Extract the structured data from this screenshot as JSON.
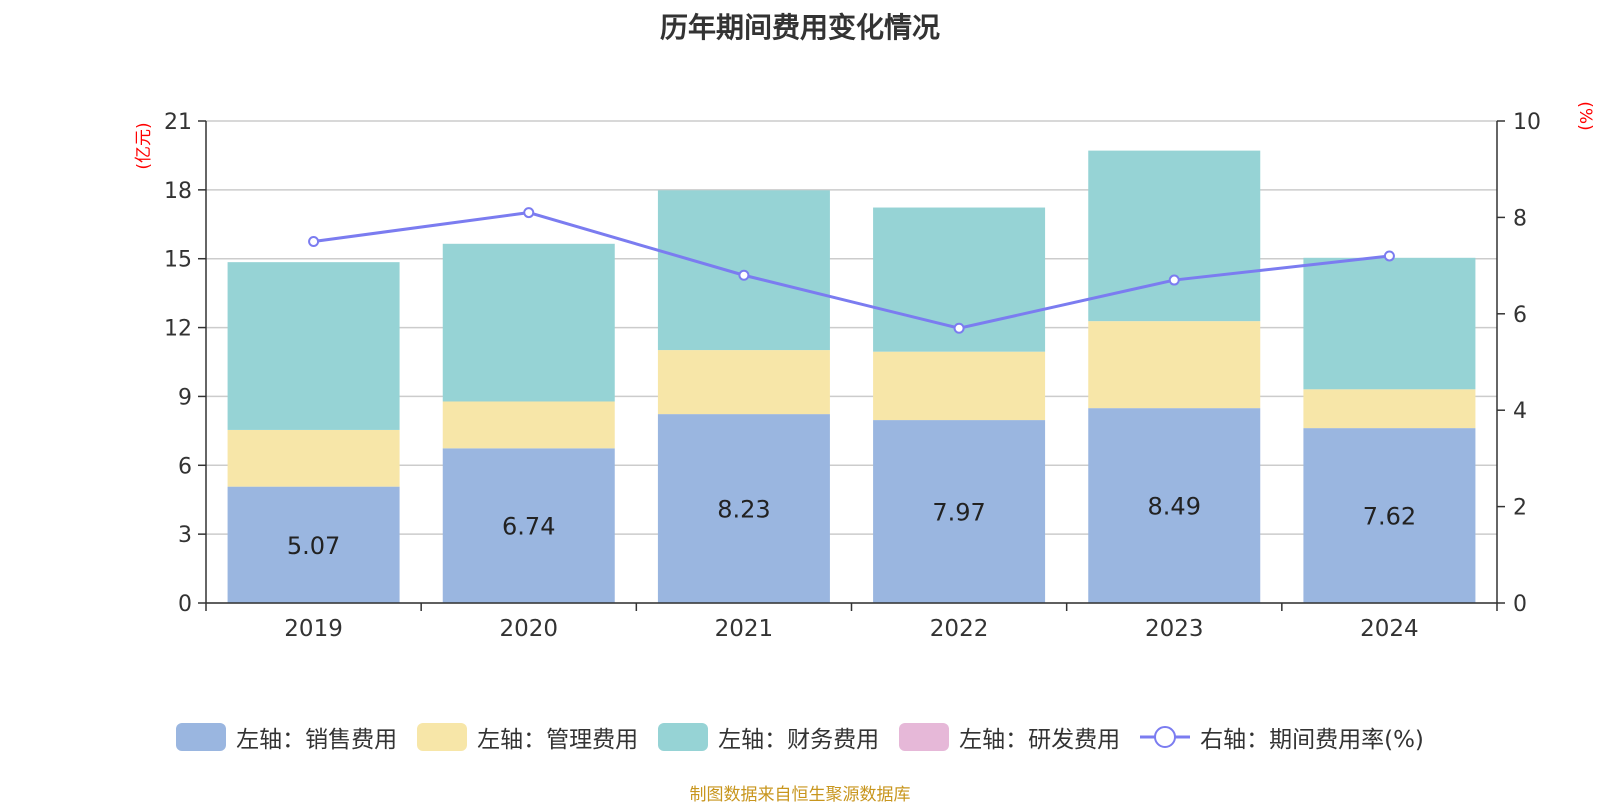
{
  "title": "历年期间费用变化情况",
  "source": "制图数据来自恒生聚源数据库",
  "colors": {
    "sales": "#9ab6e0",
    "admin": "#f7e6a8",
    "finance": "#96d3d5",
    "rd": "#e6b8d8",
    "rate": "#7b7cf0",
    "unit": "#ff0000",
    "source": "#c8961e"
  },
  "legend": [
    {
      "label": "左轴：销售费用",
      "color": "#9ab6e0",
      "kind": "bar"
    },
    {
      "label": "左轴：管理费用",
      "color": "#f7e6a8",
      "kind": "bar"
    },
    {
      "label": "左轴：财务费用",
      "color": "#96d3d5",
      "kind": "bar"
    },
    {
      "label": "左轴：研发费用",
      "color": "#e6b8d8",
      "kind": "bar"
    },
    {
      "label": "右轴：期间费用率(%)",
      "color": "#7b7cf0",
      "kind": "line"
    }
  ],
  "chart_data": {
    "type": "bar",
    "title": "历年期间费用变化情况",
    "categories": [
      "2019",
      "2020",
      "2021",
      "2022",
      "2023",
      "2024"
    ],
    "y_left_unit": "(亿元)",
    "y_right_unit": "(%)",
    "y_left_ticks": [
      "0",
      "3",
      "6",
      "9",
      "12",
      "15",
      "18",
      "21"
    ],
    "y_right_ticks": [
      "0",
      "2",
      "4",
      "6",
      "8",
      "10"
    ],
    "ylim_left": [
      0,
      21
    ],
    "ylim_right": [
      0,
      10
    ],
    "grid": true,
    "legend_position": "bottom",
    "series": [
      {
        "name": "左轴：销售费用",
        "axis": "left",
        "type": "bar",
        "stack": true,
        "values": [
          5.07,
          6.74,
          8.23,
          7.97,
          8.49,
          7.62
        ],
        "labels": [
          "5.07",
          "6.74",
          "8.23",
          "7.97",
          "8.49",
          "7.62"
        ]
      },
      {
        "name": "左轴：管理费用",
        "axis": "left",
        "type": "bar",
        "stack": true,
        "values": [
          2.47,
          2.04,
          2.79,
          2.98,
          3.79,
          1.69
        ]
      },
      {
        "name": "左轴：财务费用",
        "axis": "left",
        "type": "bar",
        "stack": true,
        "values": [
          7.31,
          6.87,
          6.96,
          6.28,
          7.43,
          5.73
        ]
      },
      {
        "name": "左轴：研发费用",
        "axis": "left",
        "type": "bar",
        "stack": true,
        "values": [
          0,
          0,
          0,
          0,
          0,
          0
        ]
      },
      {
        "name": "右轴：期间费用率(%)",
        "axis": "right",
        "type": "line",
        "values": [
          7.5,
          8.1,
          6.8,
          5.7,
          6.7,
          7.2
        ]
      }
    ]
  }
}
